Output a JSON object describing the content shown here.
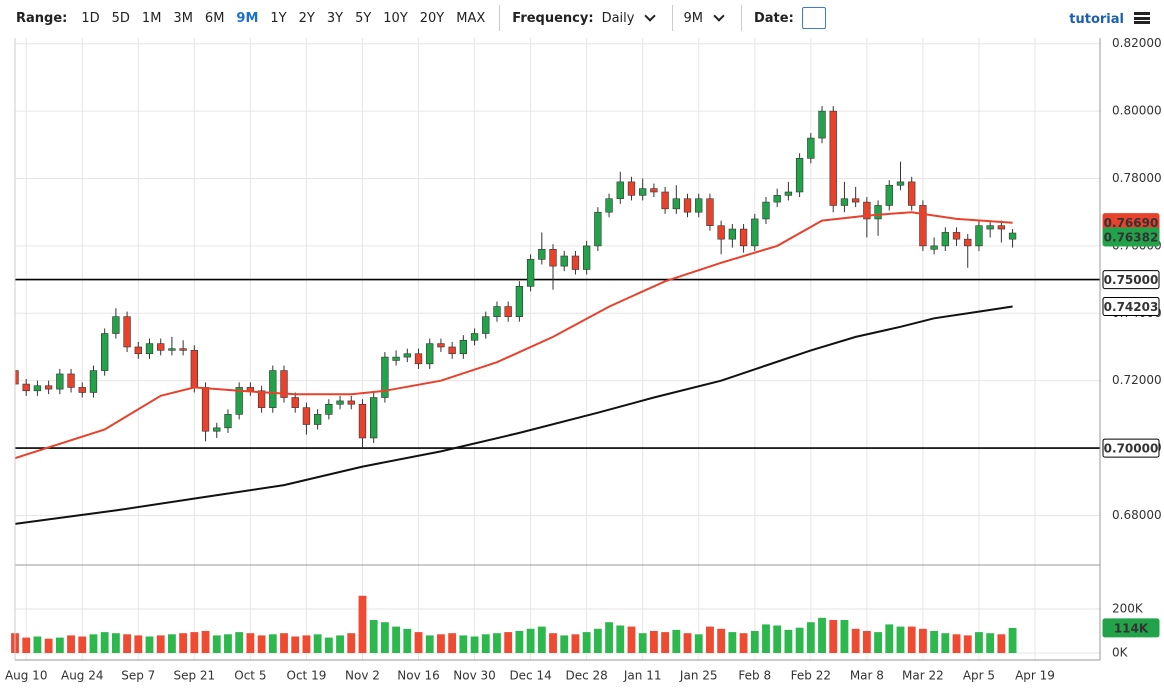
{
  "toolbar": {
    "range_label": "Range:",
    "ranges": [
      "1D",
      "5D",
      "1M",
      "3M",
      "6M",
      "9M",
      "1Y",
      "2Y",
      "3Y",
      "5Y",
      "10Y",
      "20Y",
      "MAX"
    ],
    "active_range_index": 5,
    "frequency_label": "Frequency:",
    "frequency": "Daily",
    "period": "9M",
    "date_label": "Date:",
    "tutorial": "tutorial"
  },
  "chart_data": {
    "type": "candlestick",
    "xlim": [
      0,
      96.8
    ],
    "xticks": [
      {
        "value": 1,
        "label": "Aug 10"
      },
      {
        "value": 6,
        "label": "Aug 24"
      },
      {
        "value": 11,
        "label": "Sep 7"
      },
      {
        "value": 16,
        "label": "Sep 21"
      },
      {
        "value": 21,
        "label": "Oct 5"
      },
      {
        "value": 26,
        "label": "Oct 19"
      },
      {
        "value": 31,
        "label": "Nov 2"
      },
      {
        "value": 36,
        "label": "Nov 16"
      },
      {
        "value": 41,
        "label": "Nov 30"
      },
      {
        "value": 46,
        "label": "Dec 14"
      },
      {
        "value": 51,
        "label": "Dec 28"
      },
      {
        "value": 56,
        "label": "Jan 11"
      },
      {
        "value": 61,
        "label": "Jan 25"
      },
      {
        "value": 66,
        "label": "Feb 8"
      },
      {
        "value": 71,
        "label": "Feb 22"
      },
      {
        "value": 76,
        "label": "Mar 8"
      },
      {
        "value": 81,
        "label": "Mar 22"
      },
      {
        "value": 86,
        "label": "Apr 5"
      },
      {
        "value": 91,
        "label": "Apr 19"
      }
    ],
    "ylim": [
      0.6653,
      0.8217
    ],
    "yticks": [
      {
        "value": 0.68,
        "label": "0.68000"
      },
      {
        "value": 0.7,
        "label": "0.70000"
      },
      {
        "value": 0.72,
        "label": "0.72000"
      },
      {
        "value": 0.74,
        "label": "0.74000"
      },
      {
        "value": 0.76,
        "label": "0.76000"
      },
      {
        "value": 0.78,
        "label": "0.78000"
      },
      {
        "value": 0.8,
        "label": "0.80000"
      },
      {
        "value": 0.82,
        "label": "0.82000"
      }
    ],
    "grid": true,
    "up_color": "#22a34a",
    "down_color": "#e8412c",
    "candles": [
      [
        0.723,
        0.7245,
        0.7175,
        0.719
      ],
      [
        0.719,
        0.7205,
        0.7155,
        0.717
      ],
      [
        0.717,
        0.72,
        0.7155,
        0.7185
      ],
      [
        0.7185,
        0.72,
        0.716,
        0.7175
      ],
      [
        0.7175,
        0.7235,
        0.716,
        0.722
      ],
      [
        0.722,
        0.7235,
        0.7165,
        0.718
      ],
      [
        0.718,
        0.7195,
        0.715,
        0.7165
      ],
      [
        0.7165,
        0.7245,
        0.715,
        0.723
      ],
      [
        0.723,
        0.7355,
        0.7215,
        0.734
      ],
      [
        0.734,
        0.7415,
        0.7325,
        0.739
      ],
      [
        0.739,
        0.7405,
        0.7285,
        0.73
      ],
      [
        0.73,
        0.7315,
        0.7265,
        0.728
      ],
      [
        0.728,
        0.7325,
        0.7265,
        0.731
      ],
      [
        0.731,
        0.7325,
        0.7275,
        0.729
      ],
      [
        0.729,
        0.733,
        0.7275,
        0.7295
      ],
      [
        0.7295,
        0.732,
        0.7275,
        0.729
      ],
      [
        0.729,
        0.7305,
        0.7165,
        0.718
      ],
      [
        0.718,
        0.7195,
        0.702,
        0.705
      ],
      [
        0.705,
        0.7075,
        0.703,
        0.706
      ],
      [
        0.706,
        0.7115,
        0.7045,
        0.71
      ],
      [
        0.71,
        0.7195,
        0.7085,
        0.718
      ],
      [
        0.718,
        0.7195,
        0.7155,
        0.717
      ],
      [
        0.717,
        0.7185,
        0.7105,
        0.712
      ],
      [
        0.712,
        0.7245,
        0.7105,
        0.723
      ],
      [
        0.723,
        0.7245,
        0.7135,
        0.715
      ],
      [
        0.715,
        0.7165,
        0.7105,
        0.712
      ],
      [
        0.712,
        0.7135,
        0.704,
        0.707
      ],
      [
        0.707,
        0.7115,
        0.7055,
        0.71
      ],
      [
        0.71,
        0.7145,
        0.7085,
        0.713
      ],
      [
        0.713,
        0.7155,
        0.7115,
        0.714
      ],
      [
        0.714,
        0.7155,
        0.7115,
        0.713
      ],
      [
        0.713,
        0.7145,
        0.7,
        0.703
      ],
      [
        0.703,
        0.7165,
        0.7015,
        0.715
      ],
      [
        0.715,
        0.7285,
        0.7135,
        0.727
      ],
      [
        0.726,
        0.729,
        0.7245,
        0.727
      ],
      [
        0.727,
        0.7295,
        0.7255,
        0.728
      ],
      [
        0.728,
        0.7295,
        0.7235,
        0.725
      ],
      [
        0.725,
        0.7325,
        0.7235,
        0.731
      ],
      [
        0.731,
        0.7325,
        0.7285,
        0.73
      ],
      [
        0.73,
        0.7315,
        0.7265,
        0.728
      ],
      [
        0.728,
        0.7335,
        0.7265,
        0.732
      ],
      [
        0.732,
        0.7355,
        0.7305,
        0.734
      ],
      [
        0.734,
        0.7405,
        0.7325,
        0.739
      ],
      [
        0.739,
        0.7435,
        0.7375,
        0.742
      ],
      [
        0.742,
        0.7435,
        0.7375,
        0.739
      ],
      [
        0.739,
        0.7495,
        0.7375,
        0.748
      ],
      [
        0.748,
        0.7575,
        0.7465,
        0.756
      ],
      [
        0.756,
        0.764,
        0.7545,
        0.759
      ],
      [
        0.759,
        0.7605,
        0.747,
        0.754
      ],
      [
        0.754,
        0.7585,
        0.7525,
        0.757
      ],
      [
        0.757,
        0.7585,
        0.7515,
        0.753
      ],
      [
        0.753,
        0.7615,
        0.7515,
        0.76
      ],
      [
        0.76,
        0.7715,
        0.7585,
        0.77
      ],
      [
        0.77,
        0.7755,
        0.7685,
        0.774
      ],
      [
        0.774,
        0.782,
        0.7725,
        0.779
      ],
      [
        0.779,
        0.7805,
        0.7735,
        0.775
      ],
      [
        0.775,
        0.78,
        0.7735,
        0.777
      ],
      [
        0.777,
        0.7785,
        0.7745,
        0.776
      ],
      [
        0.776,
        0.7775,
        0.7695,
        0.771
      ],
      [
        0.771,
        0.778,
        0.7695,
        0.774
      ],
      [
        0.774,
        0.7755,
        0.7685,
        0.77
      ],
      [
        0.77,
        0.7755,
        0.7685,
        0.774
      ],
      [
        0.774,
        0.7755,
        0.7645,
        0.766
      ],
      [
        0.766,
        0.7675,
        0.7575,
        0.762
      ],
      [
        0.762,
        0.7665,
        0.7595,
        0.765
      ],
      [
        0.765,
        0.7665,
        0.758,
        0.76
      ],
      [
        0.76,
        0.7695,
        0.7585,
        0.768
      ],
      [
        0.768,
        0.7745,
        0.7665,
        0.773
      ],
      [
        0.773,
        0.777,
        0.7715,
        0.775
      ],
      [
        0.775,
        0.779,
        0.7735,
        0.776
      ],
      [
        0.776,
        0.7875,
        0.7745,
        0.786
      ],
      [
        0.786,
        0.7935,
        0.7845,
        0.792
      ],
      [
        0.792,
        0.8015,
        0.7905,
        0.8
      ],
      [
        0.8,
        0.8015,
        0.77,
        0.772
      ],
      [
        0.772,
        0.779,
        0.77,
        0.774
      ],
      [
        0.774,
        0.7775,
        0.7715,
        0.773
      ],
      [
        0.773,
        0.7745,
        0.7625,
        0.768
      ],
      [
        0.768,
        0.7735,
        0.763,
        0.772
      ],
      [
        0.772,
        0.7795,
        0.7705,
        0.778
      ],
      [
        0.778,
        0.785,
        0.7765,
        0.779
      ],
      [
        0.779,
        0.7805,
        0.7705,
        0.772
      ],
      [
        0.772,
        0.7735,
        0.7585,
        0.76
      ],
      [
        0.759,
        0.7625,
        0.7575,
        0.76
      ],
      [
        0.76,
        0.7655,
        0.7585,
        0.764
      ],
      [
        0.764,
        0.7655,
        0.76,
        0.762
      ],
      [
        0.762,
        0.7635,
        0.7535,
        0.76
      ],
      [
        0.76,
        0.7675,
        0.7585,
        0.766
      ],
      [
        0.765,
        0.7675,
        0.7625,
        0.766
      ],
      [
        0.766,
        0.7675,
        0.761,
        0.765
      ],
      [
        0.762,
        0.765,
        0.7595,
        0.76382
      ]
    ],
    "last_label": {
      "value": 0.76382,
      "label": "0.76382"
    },
    "lines": [
      {
        "color": "#e8412c",
        "x": [
          0,
          8,
          13,
          16,
          20,
          25,
          30,
          33,
          38,
          43,
          48,
          53,
          58,
          63,
          68,
          72,
          76,
          80,
          84,
          89
        ],
        "values": [
          0.697,
          0.7055,
          0.7155,
          0.718,
          0.717,
          0.716,
          0.716,
          0.717,
          0.72,
          0.7255,
          0.733,
          0.742,
          0.7495,
          0.755,
          0.76,
          0.7675,
          0.769,
          0.77,
          0.768,
          0.7669
        ],
        "last_label": {
          "value": 0.7669,
          "label": "0.76690"
        }
      },
      {
        "color": "#111111",
        "x": [
          0,
          9,
          17,
          24,
          31,
          38,
          45,
          52,
          57,
          63,
          67,
          71,
          75,
          79,
          82,
          86,
          89
        ],
        "values": [
          0.6775,
          0.6815,
          0.6855,
          0.689,
          0.6945,
          0.699,
          0.7045,
          0.7105,
          0.715,
          0.72,
          0.7245,
          0.729,
          0.733,
          0.736,
          0.7385,
          0.7405,
          0.74203
        ],
        "last_label": {
          "value": 0.74203,
          "label": "0.74203"
        }
      }
    ],
    "hlines": [
      {
        "value": 0.75,
        "label": "0.75000"
      },
      {
        "value": 0.7,
        "label": "0.70000"
      }
    ],
    "volume": {
      "ylim": [
        0,
        400
      ],
      "yticks": [
        {
          "value": 0,
          "label": "0K"
        },
        {
          "value": 200,
          "label": "200K"
        }
      ],
      "values": [
        90,
        70,
        75,
        65,
        70,
        80,
        75,
        85,
        95,
        90,
        85,
        80,
        75,
        80,
        85,
        90,
        95,
        100,
        80,
        85,
        95,
        90,
        80,
        85,
        90,
        75,
        80,
        85,
        70,
        80,
        90,
        260,
        150,
        140,
        120,
        110,
        95,
        80,
        85,
        90,
        80,
        75,
        85,
        90,
        95,
        100,
        110,
        120,
        90,
        80,
        85,
        95,
        110,
        140,
        125,
        120,
        90,
        100,
        95,
        105,
        90,
        85,
        120,
        110,
        95,
        90,
        100,
        130,
        125,
        105,
        115,
        140,
        160,
        150,
        150,
        110,
        100,
        95,
        130,
        120,
        120,
        110,
        100,
        90,
        85,
        80,
        95,
        90,
        85,
        114
      ],
      "last_label": {
        "value": 114,
        "label": "114K"
      }
    }
  }
}
